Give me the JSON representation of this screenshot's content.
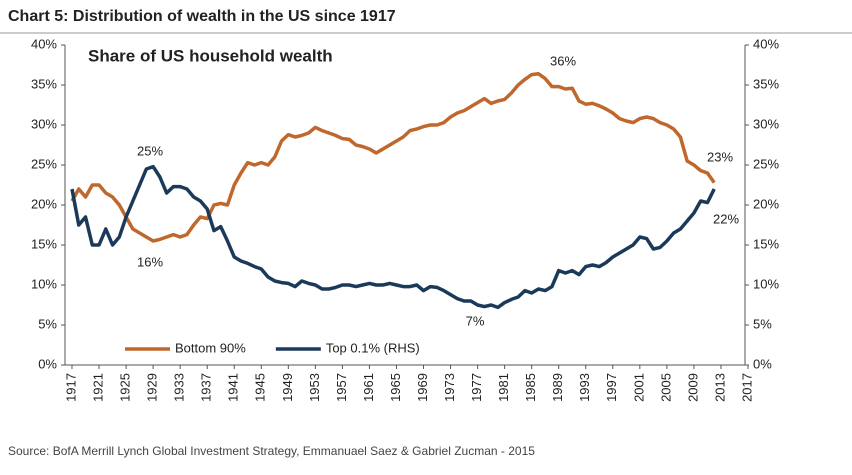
{
  "chart_data": {
    "type": "line",
    "title": "Chart 5: Distribution of wealth in the US since 1917",
    "subtitle": "Share of US household wealth",
    "source": "Source: BofA Merrill Lynch Global Investment Strategy, Emmanuael Saez & Gabriel Zucman - 2015",
    "x": [
      1917,
      1918,
      1919,
      1920,
      1921,
      1922,
      1923,
      1924,
      1925,
      1926,
      1927,
      1928,
      1929,
      1930,
      1931,
      1932,
      1933,
      1934,
      1935,
      1936,
      1937,
      1938,
      1939,
      1940,
      1941,
      1942,
      1943,
      1944,
      1945,
      1946,
      1947,
      1948,
      1949,
      1950,
      1951,
      1952,
      1953,
      1954,
      1955,
      1956,
      1957,
      1958,
      1959,
      1960,
      1961,
      1962,
      1963,
      1964,
      1965,
      1966,
      1967,
      1968,
      1969,
      1970,
      1971,
      1972,
      1973,
      1974,
      1975,
      1976,
      1977,
      1978,
      1979,
      1980,
      1981,
      1982,
      1983,
      1984,
      1985,
      1986,
      1987,
      1988,
      1989,
      1990,
      1991,
      1992,
      1993,
      1994,
      1995,
      1996,
      1997,
      1998,
      1999,
      2000,
      2001,
      2002,
      2003,
      2004,
      2005,
      2006,
      2007,
      2008,
      2009,
      2010,
      2011,
      2012
    ],
    "series": [
      {
        "name": "Bottom 90%",
        "color": "#c0682c",
        "values": [
          20.5,
          22,
          21,
          22.5,
          22.5,
          21.5,
          21,
          20,
          18.5,
          17,
          16.5,
          16,
          15.5,
          15.7,
          16,
          16.3,
          16,
          16.3,
          17.5,
          18.5,
          18.3,
          20,
          20.2,
          20,
          22.5,
          24,
          25.3,
          25,
          25.3,
          25,
          26,
          28,
          28.8,
          28.5,
          28.7,
          29,
          29.7,
          29.3,
          29,
          28.7,
          28.3,
          28.2,
          27.5,
          27.3,
          27,
          26.5,
          27,
          27.5,
          28,
          28.5,
          29.3,
          29.5,
          29.8,
          30,
          30,
          30.3,
          31,
          31.5,
          31.8,
          32.3,
          32.8,
          33.3,
          32.7,
          33,
          33.2,
          34,
          35,
          35.7,
          36.3,
          36.4,
          35.8,
          34.8,
          34.8,
          34.5,
          34.6,
          33,
          32.6,
          32.7,
          32.4,
          32,
          31.5,
          30.8,
          30.5,
          30.3,
          30.8,
          31,
          30.8,
          30.3,
          30,
          29.5,
          28.5,
          25.5,
          25,
          24.3,
          24,
          22.8
        ]
      },
      {
        "name": "Top 0.1% (RHS)",
        "color": "#1b3a5a",
        "axis": "y2",
        "values": [
          22,
          17.5,
          18.5,
          15,
          15,
          17,
          15,
          16,
          18.5,
          20.5,
          22.5,
          24.5,
          24.8,
          23.5,
          21.5,
          22.3,
          22.3,
          22,
          21,
          20.5,
          19.5,
          16.8,
          17.3,
          15.5,
          13.5,
          13,
          12.7,
          12.3,
          12,
          11,
          10.5,
          10.3,
          10.2,
          9.8,
          10.5,
          10.2,
          10,
          9.5,
          9.5,
          9.7,
          10,
          10,
          9.8,
          10,
          10.2,
          10,
          10,
          10.2,
          10,
          9.8,
          9.8,
          10,
          9.3,
          9.8,
          9.7,
          9.3,
          8.8,
          8.3,
          8,
          8,
          7.5,
          7.3,
          7.5,
          7.2,
          7.8,
          8.2,
          8.5,
          9.3,
          9,
          9.5,
          9.3,
          9.8,
          11.8,
          11.5,
          11.8,
          11.3,
          12.3,
          12.5,
          12.3,
          12.8,
          13.5,
          14,
          14.5,
          15,
          16,
          15.8,
          14.5,
          14.7,
          15.5,
          16.5,
          17,
          18,
          19,
          20.5,
          20.3,
          22
        ]
      }
    ],
    "annotations": [
      "36%",
      "25%",
      "16%",
      "23%",
      "22%",
      "7%"
    ],
    "xlim": [
      1917,
      2017
    ],
    "xticks": [
      1917,
      1921,
      1925,
      1929,
      1933,
      1937,
      1941,
      1945,
      1949,
      1953,
      1957,
      1961,
      1965,
      1969,
      1973,
      1977,
      1981,
      1985,
      1989,
      1993,
      1997,
      2001,
      2005,
      2009,
      2013,
      2017
    ],
    "ylim": [
      0,
      40
    ],
    "yticks": [
      {
        "value": 0,
        "label": "0%"
      },
      {
        "value": 5,
        "label": "5%"
      },
      {
        "value": 10,
        "label": "10%"
      },
      {
        "value": 15,
        "label": "15%"
      },
      {
        "value": 20,
        "label": "20%"
      },
      {
        "value": 25,
        "label": "25%"
      },
      {
        "value": 30,
        "label": "30%"
      },
      {
        "value": 35,
        "label": "35%"
      },
      {
        "value": 40,
        "label": "40%"
      }
    ],
    "y2lim": [
      0,
      40
    ],
    "y2ticks": [
      {
        "value": 0,
        "label": "0%"
      },
      {
        "value": 5,
        "label": "5%"
      },
      {
        "value": 10,
        "label": "10%"
      },
      {
        "value": 15,
        "label": "15%"
      },
      {
        "value": 20,
        "label": "20%"
      },
      {
        "value": 25,
        "label": "25%"
      },
      {
        "value": 30,
        "label": "30%"
      },
      {
        "value": 35,
        "label": "35%"
      },
      {
        "value": 40,
        "label": "40%"
      }
    ],
    "legend": "lower left"
  }
}
